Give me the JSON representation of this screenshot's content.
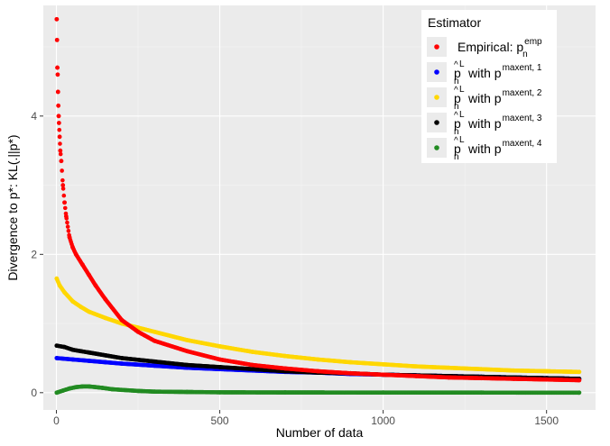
{
  "chart_data": {
    "type": "scatter",
    "title": "",
    "xlabel": "Number of data",
    "ylabel": "Divergence to p*: KL(.||p*)",
    "xlim": [
      -40,
      1650
    ],
    "ylim": [
      -0.25,
      5.6
    ],
    "x_ticks": [
      0,
      500,
      1000,
      1500
    ],
    "y_ticks": [
      0,
      2,
      4
    ],
    "x_tick_labels": [
      "0",
      "500",
      "1000",
      "1500"
    ],
    "y_tick_labels": [
      "0",
      "2",
      "4"
    ],
    "background": "#ebebeb",
    "grid": true,
    "legend": {
      "title": "Estimator",
      "placement": "top-right",
      "entries": [
        {
          "key": "empirical",
          "main": "Empirical: p",
          "sup": "emp",
          "sub": "n",
          "color": "#ff0000"
        },
        {
          "key": "maxent1",
          "main": "with p",
          "sup": "maxent, 1",
          "sub": "n",
          "color": "#0000ff"
        },
        {
          "key": "maxent2",
          "main": "with p",
          "sup": "maxent, 2",
          "sub": "n",
          "color": "#ffd700"
        },
        {
          "key": "maxent3",
          "main": "with p",
          "sup": "maxent, 3",
          "sub": "n",
          "color": "#000000"
        },
        {
          "key": "maxent4",
          "main": "with p",
          "sup": "maxent, 4",
          "sub": "n",
          "color": "#228b22"
        }
      ]
    },
    "series": [
      {
        "key": "empirical",
        "color": "#ff0000",
        "x": [
          1,
          2,
          3,
          4,
          5,
          6,
          7,
          8,
          10,
          12,
          15,
          20,
          25,
          30,
          40,
          50,
          60,
          80,
          100,
          120,
          150,
          200,
          250,
          300,
          400,
          500,
          600,
          700,
          800,
          900,
          1000,
          1100,
          1200,
          1300,
          1400,
          1500,
          1600
        ],
        "y": [
          5.4,
          5.1,
          4.7,
          4.6,
          4.35,
          4.15,
          4.0,
          3.9,
          3.7,
          3.5,
          3.35,
          3.0,
          2.75,
          2.55,
          2.25,
          2.1,
          2.0,
          1.85,
          1.7,
          1.55,
          1.35,
          1.05,
          0.88,
          0.75,
          0.6,
          0.48,
          0.4,
          0.35,
          0.31,
          0.28,
          0.26,
          0.24,
          0.22,
          0.21,
          0.2,
          0.19,
          0.18
        ]
      },
      {
        "key": "maxent1",
        "color": "#0000ff",
        "x": [
          1,
          50,
          100,
          150,
          200,
          300,
          400,
          500,
          600,
          700,
          800,
          900,
          1000,
          1100,
          1200,
          1300,
          1400,
          1500,
          1600
        ],
        "y": [
          0.5,
          0.48,
          0.46,
          0.44,
          0.42,
          0.39,
          0.36,
          0.34,
          0.32,
          0.3,
          0.29,
          0.27,
          0.26,
          0.25,
          0.24,
          0.23,
          0.22,
          0.21,
          0.2
        ]
      },
      {
        "key": "maxent2",
        "color": "#ffd700",
        "x": [
          1,
          10,
          25,
          50,
          75,
          100,
          150,
          200,
          250,
          300,
          400,
          500,
          600,
          700,
          800,
          900,
          1000,
          1100,
          1200,
          1300,
          1400,
          1500,
          1600
        ],
        "y": [
          1.65,
          1.55,
          1.45,
          1.32,
          1.24,
          1.17,
          1.08,
          1.0,
          0.94,
          0.88,
          0.76,
          0.67,
          0.59,
          0.53,
          0.48,
          0.44,
          0.41,
          0.38,
          0.36,
          0.34,
          0.32,
          0.31,
          0.3
        ]
      },
      {
        "key": "maxent3",
        "color": "#000000",
        "x": [
          1,
          25,
          50,
          75,
          100,
          150,
          200,
          300,
          400,
          500,
          600,
          700,
          800,
          900,
          1000,
          1100,
          1200,
          1300,
          1400,
          1500,
          1600
        ],
        "y": [
          0.68,
          0.66,
          0.62,
          0.6,
          0.58,
          0.54,
          0.5,
          0.45,
          0.4,
          0.37,
          0.34,
          0.31,
          0.29,
          0.28,
          0.26,
          0.25,
          0.24,
          0.23,
          0.22,
          0.21,
          0.2
        ]
      },
      {
        "key": "maxent4",
        "color": "#228b22",
        "x": [
          1,
          20,
          40,
          60,
          80,
          100,
          120,
          140,
          170,
          200,
          250,
          300,
          400,
          500,
          700,
          1000,
          1300,
          1600
        ],
        "y": [
          0.0,
          0.03,
          0.06,
          0.08,
          0.09,
          0.09,
          0.08,
          0.07,
          0.05,
          0.04,
          0.025,
          0.015,
          0.01,
          0.005,
          0.003,
          0.002,
          0.001,
          0.0
        ]
      }
    ]
  }
}
